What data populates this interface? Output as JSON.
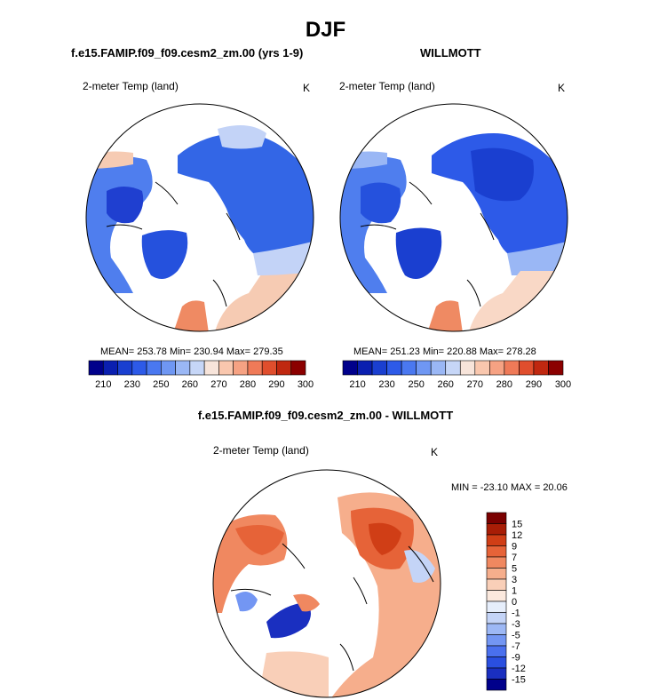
{
  "figure": {
    "title": "DJF",
    "left_panel_title": "f.e15.FAMIP.f09_f09.cesm2_zm.00 (yrs 1-9)",
    "right_panel_title": "WILLMOTT",
    "diff_panel_title": "f.e15.FAMIP.f09_f09.cesm2_zm.00 - WILLMOTT"
  },
  "colors": {
    "land_line": "#000000",
    "ocean_bg": "#ffffff",
    "abs_scale": [
      "#00008b",
      "#0a1fb0",
      "#1a3fd0",
      "#2d5ae8",
      "#4a78f0",
      "#6f97f3",
      "#9ab7f5",
      "#c6d6f7",
      "#f7e4da",
      "#f9c7ae",
      "#f6a283",
      "#ef7a58",
      "#e04e2d",
      "#c02810",
      "#8b0000"
    ],
    "diff_scale": [
      "#00008b",
      "#1a2fc0",
      "#2a4fe0",
      "#4a70ee",
      "#7396f3",
      "#9db8f5",
      "#c4d4f7",
      "#e6eefb",
      "#fbe9de",
      "#f9cfb8",
      "#f6ae8c",
      "#f08860",
      "#e66338",
      "#d03e16",
      "#a81d06",
      "#7a0000"
    ]
  },
  "chart_data": [
    {
      "type": "heatmap",
      "panel": "model",
      "title": "f.e15.FAMIP.f09_f09.cesm2_zm.00 (yrs 1-9)",
      "variable": "2-meter Temp (land)",
      "units": "K",
      "projection": "north-polar-stereographic",
      "mean": "253.78",
      "min": "230.94",
      "max": "279.35",
      "stats_text": "MEAN= 253.78  Min= 230.94  Max= 279.35",
      "colorbar_ticks": [
        "210",
        "230",
        "250",
        "260",
        "270",
        "280",
        "290",
        "300"
      ],
      "colorbar_range": [
        210,
        300
      ]
    },
    {
      "type": "heatmap",
      "panel": "observations",
      "title": "WILLMOTT",
      "variable": "2-meter Temp (land)",
      "units": "K",
      "projection": "north-polar-stereographic",
      "mean": "251.23",
      "min": "220.88",
      "max": "278.28",
      "stats_text": "MEAN= 251.23  Min= 220.88  Max= 278.28",
      "colorbar_ticks": [
        "210",
        "230",
        "250",
        "260",
        "270",
        "280",
        "290",
        "300"
      ],
      "colorbar_range": [
        210,
        300
      ]
    },
    {
      "type": "heatmap",
      "panel": "difference",
      "title": "f.e15.FAMIP.f09_f09.cesm2_zm.00 - WILLMOTT",
      "variable": "2-meter Temp (land)",
      "units": "K",
      "projection": "north-polar-stereographic",
      "min": "-23.10",
      "max": "20.06",
      "stats_text": "MIN = -23.10 MAX =  20.06",
      "colorbar_ticks": [
        "15",
        "12",
        "9",
        "7",
        "5",
        "3",
        "1",
        "0",
        "-1",
        "-3",
        "-5",
        "-7",
        "-9",
        "-12",
        "-15"
      ],
      "colorbar_range": [
        -15,
        15
      ]
    }
  ]
}
